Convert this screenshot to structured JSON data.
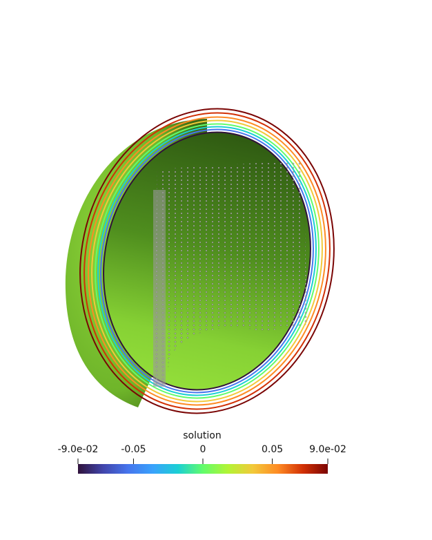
{
  "colorbar": {
    "title": "solution",
    "range": [
      -0.09,
      0.09
    ],
    "ticks": [
      {
        "value": -0.09,
        "label": "-9.0e-02"
      },
      -0.05,
      0,
      0.05,
      {
        "value": 0.09,
        "label": "9.0e-02"
      }
    ]
  }
}
